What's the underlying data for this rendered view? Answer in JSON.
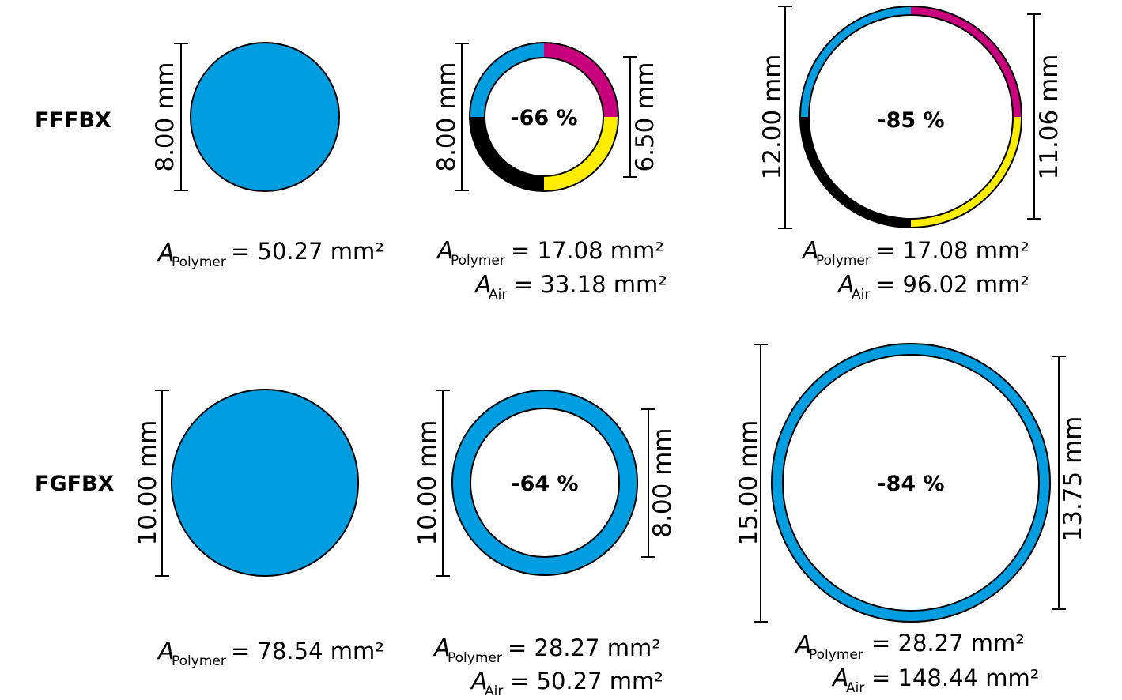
{
  "colors": {
    "blue": "#009ee0",
    "magenta": "#c8007e",
    "yellow": "#ffed00",
    "black": "#000000"
  },
  "rows": [
    {
      "label": "FFFBX",
      "solid": {
        "diameter": "8.00 mm",
        "area": {
          "sub": "Polymer",
          "value": "= 50.27 mm²"
        }
      },
      "hollow_small": {
        "outer": "8.00 mm",
        "inner": "6.50 mm",
        "reduction": "-66 %",
        "colors": [
          "blue",
          "magenta",
          "yellow",
          "black"
        ],
        "area_polymer": {
          "sub": "Polymer",
          "value": "= 17.08 mm²"
        },
        "area_air": {
          "sub": "Air",
          "value": "= 33.18 mm²"
        }
      },
      "hollow_large": {
        "outer": "12.00 mm",
        "inner": "11.06 mm",
        "reduction": "-85 %",
        "colors": [
          "blue",
          "magenta",
          "yellow",
          "black"
        ],
        "area_polymer": {
          "sub": "Polymer",
          "value": "= 17.08 mm²"
        },
        "area_air": {
          "sub": "Air",
          "value": "= 96.02 mm²"
        }
      }
    },
    {
      "label": "FGFBX",
      "solid": {
        "diameter": "10.00 mm",
        "area": {
          "sub": "Polymer",
          "value": "= 78.54 mm²"
        }
      },
      "hollow_small": {
        "outer": "10.00 mm",
        "inner": "8.00 mm",
        "reduction": "-64 %",
        "colors": [
          "blue"
        ],
        "area_polymer": {
          "sub": "Polymer",
          "value": "= 28.27 mm²"
        },
        "area_air": {
          "sub": "Air",
          "value": "= 50.27 mm²"
        }
      },
      "hollow_large": {
        "outer": "15.00 mm",
        "inner": "13.75 mm",
        "reduction": "-84 %",
        "colors": [
          "blue"
        ],
        "area_polymer": {
          "sub": "Polymer",
          "value": "=   28.27 mm²"
        },
        "area_air": {
          "sub": "Air",
          "value": "= 148.44 mm²"
        }
      }
    }
  ]
}
